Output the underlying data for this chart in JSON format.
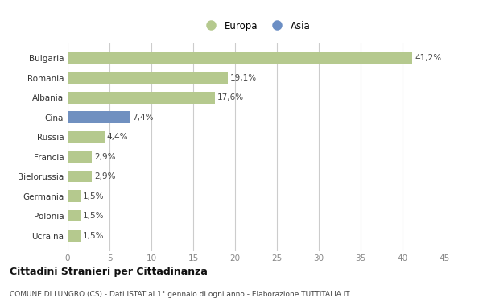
{
  "categories": [
    "Ucraina",
    "Polonia",
    "Germania",
    "Bielorussia",
    "Francia",
    "Russia",
    "Cina",
    "Albania",
    "Romania",
    "Bulgaria"
  ],
  "values": [
    1.5,
    1.5,
    1.5,
    2.9,
    2.9,
    4.4,
    7.4,
    17.6,
    19.1,
    41.2
  ],
  "labels": [
    "1,5%",
    "1,5%",
    "1,5%",
    "2,9%",
    "2,9%",
    "4,4%",
    "7,4%",
    "17,6%",
    "19,1%",
    "41,2%"
  ],
  "colors": [
    "#b5c98e",
    "#b5c98e",
    "#b5c98e",
    "#b5c98e",
    "#b5c98e",
    "#b5c98e",
    "#7090c0",
    "#b5c98e",
    "#b5c98e",
    "#b5c98e"
  ],
  "europa_color": "#b5c98e",
  "asia_color": "#6b8ec4",
  "bg_color": "#ffffff",
  "xlim": [
    0,
    45
  ],
  "xticks": [
    0,
    5,
    10,
    15,
    20,
    25,
    30,
    35,
    40,
    45
  ],
  "title": "Cittadini Stranieri per Cittadinanza",
  "subtitle": "COMUNE DI LUNGRO (CS) - Dati ISTAT al 1° gennaio di ogni anno - Elaborazione TUTTITALIA.IT",
  "legend_europa": "Europa",
  "legend_asia": "Asia"
}
